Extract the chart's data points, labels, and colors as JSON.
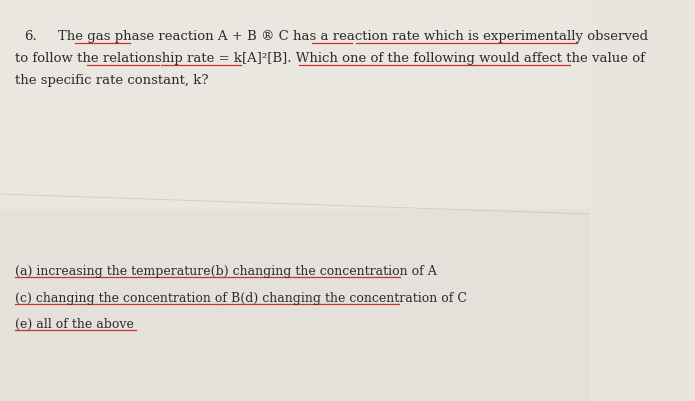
{
  "background_color": "#e8e4de",
  "background_color2": "#d4cfc8",
  "question_number": "6.",
  "line1": "The gas phase reaction A + B ® C has a reaction rate which is experimentally observed",
  "line2": "to follow the relationship rate = k[A]²[B]. Which one of the following would affect the value of",
  "line3": "the specific rate constant, k?",
  "option_ab": "(a) increasing the temperature(b) changing the concentration of A",
  "option_cd": "(c) changing the concentration of B(d) changing the concentration of C",
  "option_e": "(e) all of the above",
  "text_color": "#2d2d2d",
  "font_size_main": 9.5,
  "font_size_options": 9.0,
  "underline_color": "#c0392b",
  "ul_lw": 0.9
}
